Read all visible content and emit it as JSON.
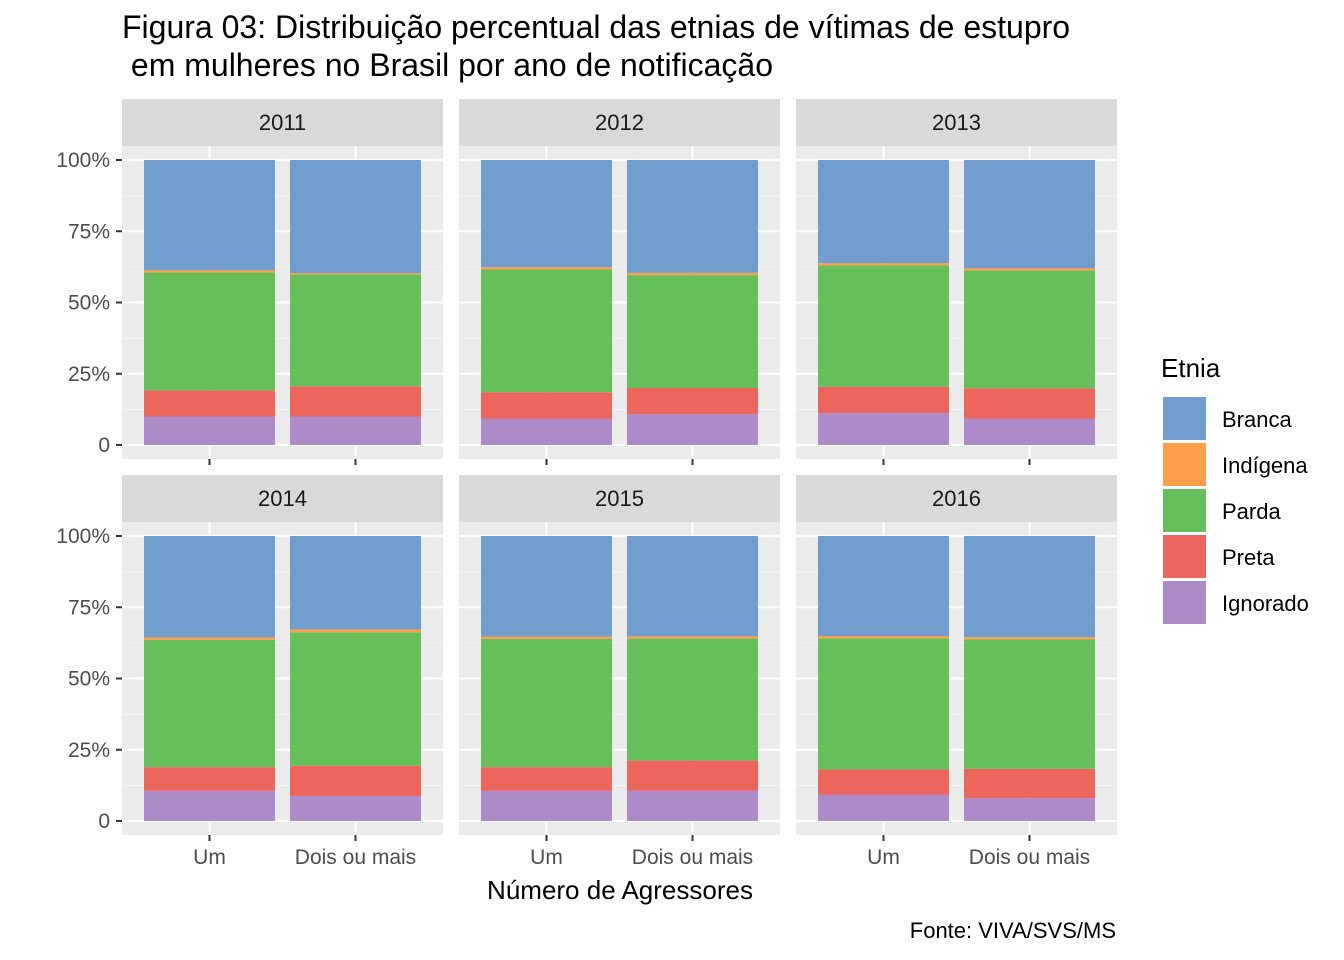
{
  "chart_data": {
    "type": "bar",
    "stacked": "percent",
    "faceted": true,
    "title": "Figura 03: Distribuição percentual das etnias de vítimas de estupro\n em mulheres no Brasil por ano de notificação",
    "xlabel": "Número de Agressores",
    "ylabel": "",
    "caption": "Fonte: VIVA/SVS/MS",
    "categories": [
      "Um",
      "Dois ou mais"
    ],
    "ylim": [
      0,
      100
    ],
    "yticks": [
      0,
      25,
      50,
      75,
      100
    ],
    "ytick_labels": [
      "0",
      "25%",
      "50%",
      "75%",
      "100%"
    ],
    "legend": {
      "title": "Etnia",
      "position": "right",
      "entries": [
        "Branca",
        "Indígena",
        "Parda",
        "Preta",
        "Ignorado"
      ]
    },
    "colors": {
      "Branca": "#729ece",
      "Indígena": "#ff9e4a",
      "Parda": "#67bf5c",
      "Preta": "#ed665d",
      "Ignorado": "#ad8bc9"
    },
    "stack_order_bottom_to_top": [
      "Ignorado",
      "Preta",
      "Parda",
      "Indígena",
      "Branca"
    ],
    "facets": [
      {
        "panel": "2011",
        "series": [
          {
            "name": "Ignorado",
            "values": [
              10.0,
              10.0
            ]
          },
          {
            "name": "Preta",
            "values": [
              9.2,
              10.6
            ]
          },
          {
            "name": "Parda",
            "values": [
              41.3,
              39.2
            ]
          },
          {
            "name": "Indígena",
            "values": [
              0.8,
              0.5
            ]
          },
          {
            "name": "Branca",
            "values": [
              38.7,
              39.7
            ]
          }
        ]
      },
      {
        "panel": "2012",
        "series": [
          {
            "name": "Ignorado",
            "values": [
              9.3,
              10.8
            ]
          },
          {
            "name": "Preta",
            "values": [
              9.2,
              9.2
            ]
          },
          {
            "name": "Parda",
            "values": [
              43.1,
              39.6
            ]
          },
          {
            "name": "Indígena",
            "values": [
              0.8,
              0.8
            ]
          },
          {
            "name": "Branca",
            "values": [
              37.6,
              39.6
            ]
          }
        ]
      },
      {
        "panel": "2013",
        "series": [
          {
            "name": "Ignorado",
            "values": [
              11.2,
              9.3
            ]
          },
          {
            "name": "Preta",
            "values": [
              9.2,
              10.6
            ]
          },
          {
            "name": "Parda",
            "values": [
              42.6,
              41.3
            ]
          },
          {
            "name": "Indígena",
            "values": [
              0.8,
              0.8
            ]
          },
          {
            "name": "Branca",
            "values": [
              36.2,
              38.0
            ]
          }
        ]
      },
      {
        "panel": "2014",
        "series": [
          {
            "name": "Ignorado",
            "values": [
              10.6,
              8.8
            ]
          },
          {
            "name": "Preta",
            "values": [
              8.3,
              10.6
            ]
          },
          {
            "name": "Parda",
            "values": [
              44.7,
              46.8
            ]
          },
          {
            "name": "Indígena",
            "values": [
              0.8,
              1.0
            ]
          },
          {
            "name": "Branca",
            "values": [
              35.6,
              32.8
            ]
          }
        ]
      },
      {
        "panel": "2015",
        "series": [
          {
            "name": "Ignorado",
            "values": [
              10.6,
              10.6
            ]
          },
          {
            "name": "Preta",
            "values": [
              8.3,
              10.6
            ]
          },
          {
            "name": "Parda",
            "values": [
              45.0,
              42.8
            ]
          },
          {
            "name": "Indígena",
            "values": [
              0.8,
              0.8
            ]
          },
          {
            "name": "Branca",
            "values": [
              35.3,
              35.2
            ]
          }
        ]
      },
      {
        "panel": "2016",
        "series": [
          {
            "name": "Ignorado",
            "values": [
              9.3,
              8.0
            ]
          },
          {
            "name": "Preta",
            "values": [
              8.8,
              10.3
            ]
          },
          {
            "name": "Parda",
            "values": [
              46.0,
              45.4
            ]
          },
          {
            "name": "Indígena",
            "values": [
              0.8,
              0.8
            ]
          },
          {
            "name": "Branca",
            "values": [
              35.1,
              35.5
            ]
          }
        ]
      }
    ]
  }
}
